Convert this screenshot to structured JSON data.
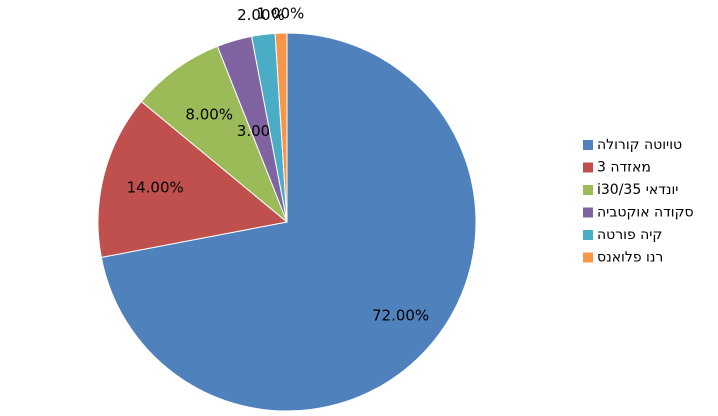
{
  "chart_data": {
    "type": "pie",
    "categories": [
      "טויוטה קורולה",
      "מאזדה 3",
      "יונדאי i30/35",
      "סקודה אוקטביה",
      "קיה פורטה",
      "רנו פלואנס"
    ],
    "values": [
      72,
      14,
      8,
      3,
      2,
      1
    ],
    "value_labels": [
      "72.00%",
      "14.00%",
      "8.00%",
      "3.00%",
      "2.00%",
      "1.00%"
    ],
    "colors": [
      "#4f81bd",
      "#c0504d",
      "#9bbb59",
      "#8064a2",
      "#4bacc6",
      "#f79646"
    ],
    "legend": "right"
  }
}
